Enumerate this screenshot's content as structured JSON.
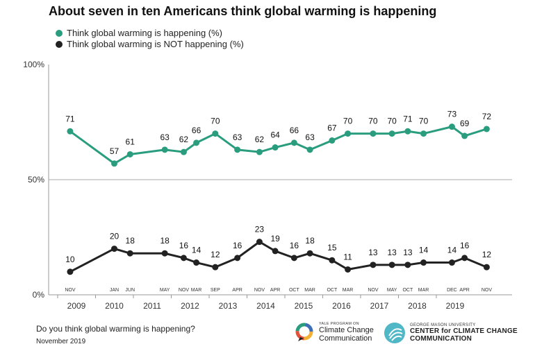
{
  "colors": {
    "happening": "#2a9d7f",
    "not_happening": "#222222",
    "axis": "#888888"
  },
  "chart_data": {
    "type": "line",
    "title": "About seven in ten Americans think global warming is happening",
    "ylim": [
      0,
      100
    ],
    "y_ticks": [
      "0%",
      "50%",
      "100%"
    ],
    "legend_placement": "top-left",
    "grid": "50% reference line",
    "year_labels": [
      {
        "label": "2009",
        "year": 2009.0
      },
      {
        "label": "2010",
        "year": 2010.0
      },
      {
        "label": "2011",
        "year": 2011.0
      },
      {
        "label": "2012",
        "year": 2012.0
      },
      {
        "label": "2013",
        "year": 2013.0
      },
      {
        "label": "2014",
        "year": 2014.0
      },
      {
        "label": "2015",
        "year": 2015.0
      },
      {
        "label": "2016",
        "year": 2016.0
      },
      {
        "label": "2017",
        "year": 2017.0
      },
      {
        "label": "2018",
        "year": 2018.0
      },
      {
        "label": "2019",
        "year": 2019.0
      }
    ],
    "points": [
      {
        "month": "NOV",
        "date": "2008-11",
        "happening": 71,
        "not": 10
      },
      {
        "month": "JAN",
        "date": "2010-01",
        "happening": 57,
        "not": 20
      },
      {
        "month": "JUN",
        "date": "2010-06",
        "happening": 61,
        "not": 18
      },
      {
        "month": "MAY",
        "date": "2011-05",
        "happening": 63,
        "not": 18
      },
      {
        "month": "NOV",
        "date": "2011-11",
        "happening": 62,
        "not": 16
      },
      {
        "month": "MAR",
        "date": "2012-03",
        "happening": 66,
        "not": 14
      },
      {
        "month": "SEP",
        "date": "2012-09",
        "happening": 70,
        "not": 12
      },
      {
        "month": "APR",
        "date": "2013-04",
        "happening": 63,
        "not": 16
      },
      {
        "month": "NOV",
        "date": "2013-11",
        "happening": 62,
        "not": 23
      },
      {
        "month": "APR",
        "date": "2014-04",
        "happening": 64,
        "not": 19
      },
      {
        "month": "OCT",
        "date": "2014-10",
        "happening": 66,
        "not": 16
      },
      {
        "month": "MAR",
        "date": "2015-03",
        "happening": 63,
        "not": 18
      },
      {
        "month": "OCT",
        "date": "2015-10",
        "happening": 67,
        "not": 15
      },
      {
        "month": "MAR",
        "date": "2016-03",
        "happening": 70,
        "not": 11
      },
      {
        "month": "NOV",
        "date": "2016-11",
        "happening": 70,
        "not": 13
      },
      {
        "month": "MAY",
        "date": "2017-05",
        "happening": 70,
        "not": 13
      },
      {
        "month": "OCT",
        "date": "2017-10",
        "happening": 71,
        "not": 13
      },
      {
        "month": "MAR",
        "date": "2018-03",
        "happening": 70,
        "not": 14
      },
      {
        "month": "DEC",
        "date": "2018-12",
        "happening": 73,
        "not": 14
      },
      {
        "month": "APR",
        "date": "2019-04",
        "happening": 69,
        "not": 16
      },
      {
        "month": "NOV",
        "date": "2019-11",
        "happening": 72,
        "not": 12
      }
    ],
    "series": [
      {
        "name": "Think global warming is happening (%)",
        "key": "happening"
      },
      {
        "name": "Think global warming is NOT happening (%)",
        "key": "not"
      }
    ]
  },
  "footer": {
    "question": "Do you think global warming is happening?",
    "date": "November 2019"
  },
  "logos": {
    "yale_small": "YALE PROGRAM ON",
    "yale_line1": "Climate Change",
    "yale_line2": "Communication",
    "gmu_small": "GEORGE MASON UNIVERSITY",
    "gmu_line1": "CENTER for CLIMATE CHANGE",
    "gmu_line2": "COMMUNICATION"
  }
}
